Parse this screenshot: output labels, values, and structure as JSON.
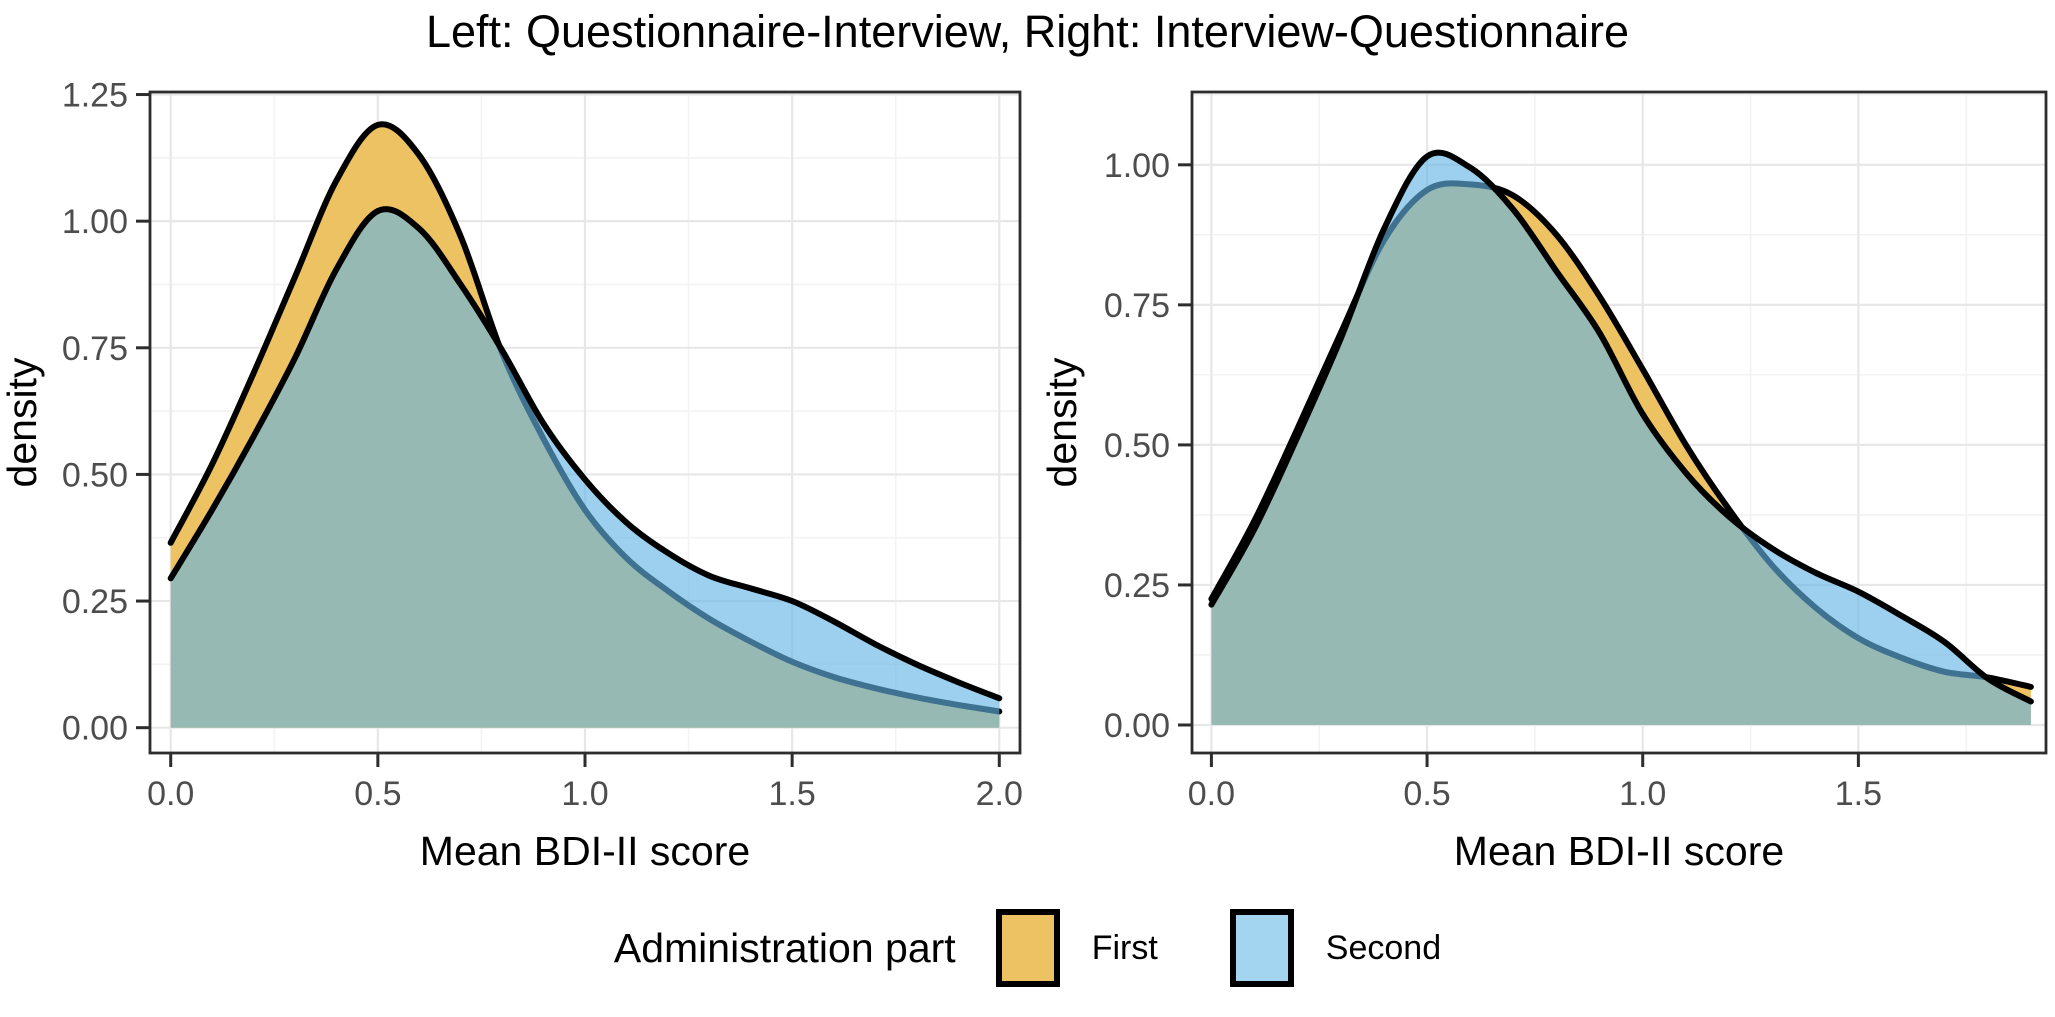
{
  "title": "Left: Questionnaire-Interview, Right: Interview-Questionnaire",
  "legend": {
    "title": "Administration part",
    "items": [
      {
        "label": "First",
        "color": "#EDC262"
      },
      {
        "label": "Second",
        "color": "#A3D5F0"
      }
    ]
  },
  "style": {
    "first_fill": "#EDC262",
    "second_fill": "rgba(100,180,228,0.63)",
    "outline": "#000000",
    "grid_major": "#E7E7E7",
    "grid_minor": "#F3F3F3",
    "panel_border": "#2D2D2D",
    "tick_mark": "#2D2D2D",
    "tick_label_color": "#4D4D4D",
    "axis_title_color": "#000000"
  },
  "chart_data": [
    {
      "type": "area",
      "name": "Questionnaire-Interview",
      "xlabel": "Mean BDI-II score",
      "ylabel": "density",
      "xlim": [
        -0.05,
        2.05
      ],
      "ylim": [
        -0.05,
        1.255
      ],
      "x_ticks": {
        "values": [
          0,
          0.5,
          1.0,
          1.5,
          2.0
        ],
        "labels": [
          "0.0",
          "0.5",
          "1.0",
          "1.5",
          "2.0"
        ]
      },
      "y_ticks": {
        "values": [
          0,
          0.25,
          0.5,
          0.75,
          1.0,
          1.25
        ],
        "labels": [
          "0.00",
          "0.25",
          "0.50",
          "0.75",
          "1.00",
          "1.25"
        ]
      },
      "grid": true,
      "x": [
        0,
        0.1,
        0.2,
        0.3,
        0.4,
        0.5,
        0.6,
        0.7,
        0.8,
        0.9,
        1.0,
        1.1,
        1.2,
        1.3,
        1.4,
        1.5,
        1.6,
        1.7,
        1.8,
        1.9,
        2.0
      ],
      "series": [
        {
          "name": "First",
          "values": [
            0.365,
            0.52,
            0.7,
            0.89,
            1.08,
            1.19,
            1.13,
            0.97,
            0.74,
            0.57,
            0.43,
            0.335,
            0.27,
            0.215,
            0.17,
            0.13,
            0.1,
            0.078,
            0.06,
            0.045,
            0.032
          ]
        },
        {
          "name": "Second",
          "values": [
            0.295,
            0.43,
            0.575,
            0.73,
            0.905,
            1.02,
            0.985,
            0.875,
            0.745,
            0.6,
            0.49,
            0.405,
            0.345,
            0.3,
            0.275,
            0.25,
            0.21,
            0.165,
            0.125,
            0.09,
            0.058
          ]
        }
      ]
    },
    {
      "type": "area",
      "name": "Interview-Questionnaire",
      "xlabel": "Mean BDI-II score",
      "ylabel": "density",
      "xlim": [
        -0.045,
        1.935
      ],
      "ylim": [
        -0.05,
        1.13
      ],
      "x_ticks": {
        "values": [
          0,
          0.5,
          1.0,
          1.5
        ],
        "labels": [
          "0.0",
          "0.5",
          "1.0",
          "1.5"
        ]
      },
      "y_ticks": {
        "values": [
          0,
          0.25,
          0.5,
          0.75,
          1.0
        ],
        "labels": [
          "0.00",
          "0.25",
          "0.50",
          "0.75",
          "1.00"
        ]
      },
      "grid": true,
      "x": [
        0,
        0.1,
        0.2,
        0.3,
        0.4,
        0.5,
        0.6,
        0.7,
        0.8,
        0.9,
        1.0,
        1.1,
        1.2,
        1.3,
        1.4,
        1.5,
        1.6,
        1.7,
        1.8,
        1.9
      ],
      "series": [
        {
          "name": "First",
          "values": [
            0.225,
            0.365,
            0.53,
            0.7,
            0.865,
            0.955,
            0.965,
            0.945,
            0.875,
            0.765,
            0.635,
            0.5,
            0.385,
            0.285,
            0.21,
            0.155,
            0.12,
            0.095,
            0.085,
            0.068
          ]
        },
        {
          "name": "Second",
          "values": [
            0.215,
            0.35,
            0.515,
            0.69,
            0.885,
            1.015,
            0.995,
            0.92,
            0.81,
            0.7,
            0.555,
            0.45,
            0.372,
            0.315,
            0.272,
            0.238,
            0.195,
            0.148,
            0.083,
            0.042
          ]
        }
      ]
    }
  ]
}
